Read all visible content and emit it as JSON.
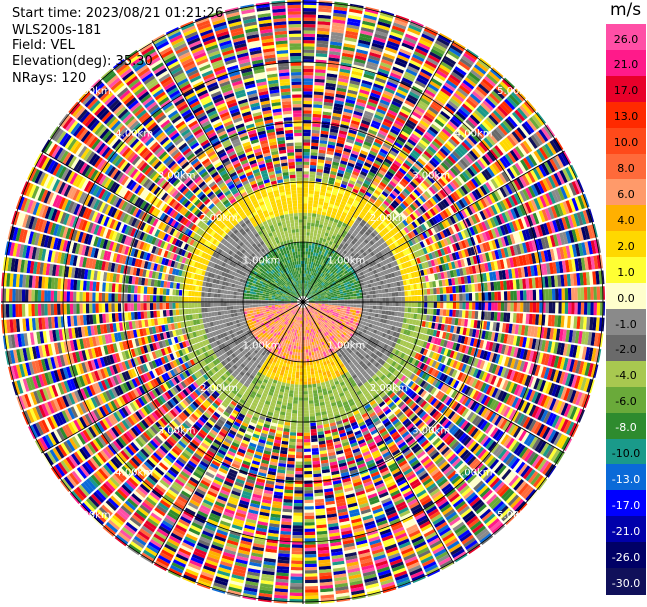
{
  "header": {
    "start_time": "Start time: 2023/08/21 01:21:26",
    "instrument": "WLS200s-181",
    "field": "Field: VEL",
    "elevation": "Elevation(deg): 35.30",
    "nrays": "NRays: 120"
  },
  "colorbar": {
    "unit": "m/s",
    "ticks": [
      "26.0",
      "21.0",
      "17.0",
      "13.0",
      "10.0",
      "8.0",
      "6.0",
      "4.0",
      "2.0",
      "1.0",
      "0.0",
      "-1.0",
      "-2.0",
      "-4.0",
      "-6.0",
      "-8.0",
      "-10.0",
      "-13.0",
      "-17.0",
      "-21.0",
      "-26.0",
      "-30.0"
    ],
    "colors": [
      "#ff4fa6",
      "#ff1a8a",
      "#e8002a",
      "#ff2a00",
      "#ff4a1a",
      "#ff6a3a",
      "#ff9a6a",
      "#ffb000",
      "#ffd800",
      "#ffff33",
      "#ffffcc",
      "#8a8a8a",
      "#6a6a6a",
      "#a8c850",
      "#6aaa3a",
      "#2e8b2e",
      "#1a9a8a",
      "#0a6ad8",
      "#0000ff",
      "#0000aa",
      "#000066",
      "#10105a"
    ]
  },
  "chart_data": {
    "type": "heatmap",
    "projection": "polar PPI",
    "field": "VEL",
    "units": "m/s",
    "value_range": [
      -30,
      30
    ],
    "range_rings_km": [
      1.0,
      2.0,
      3.0,
      4.0,
      5.0
    ],
    "range_ring_labels": [
      "1.00km",
      "2.00km",
      "3.00km",
      "4.00km",
      "5.00km"
    ],
    "nrays": 120,
    "near_range_pattern": {
      "center_band_0_to_1km": "green (-4 to -6 m/s) to the north, orange/pink (6 to 17 m/s) to the south",
      "band_1_to_2km": "yellow/green ring with grey (~0 m/s) sides",
      "beyond_2km": "noisy, random colours across full scale"
    }
  }
}
